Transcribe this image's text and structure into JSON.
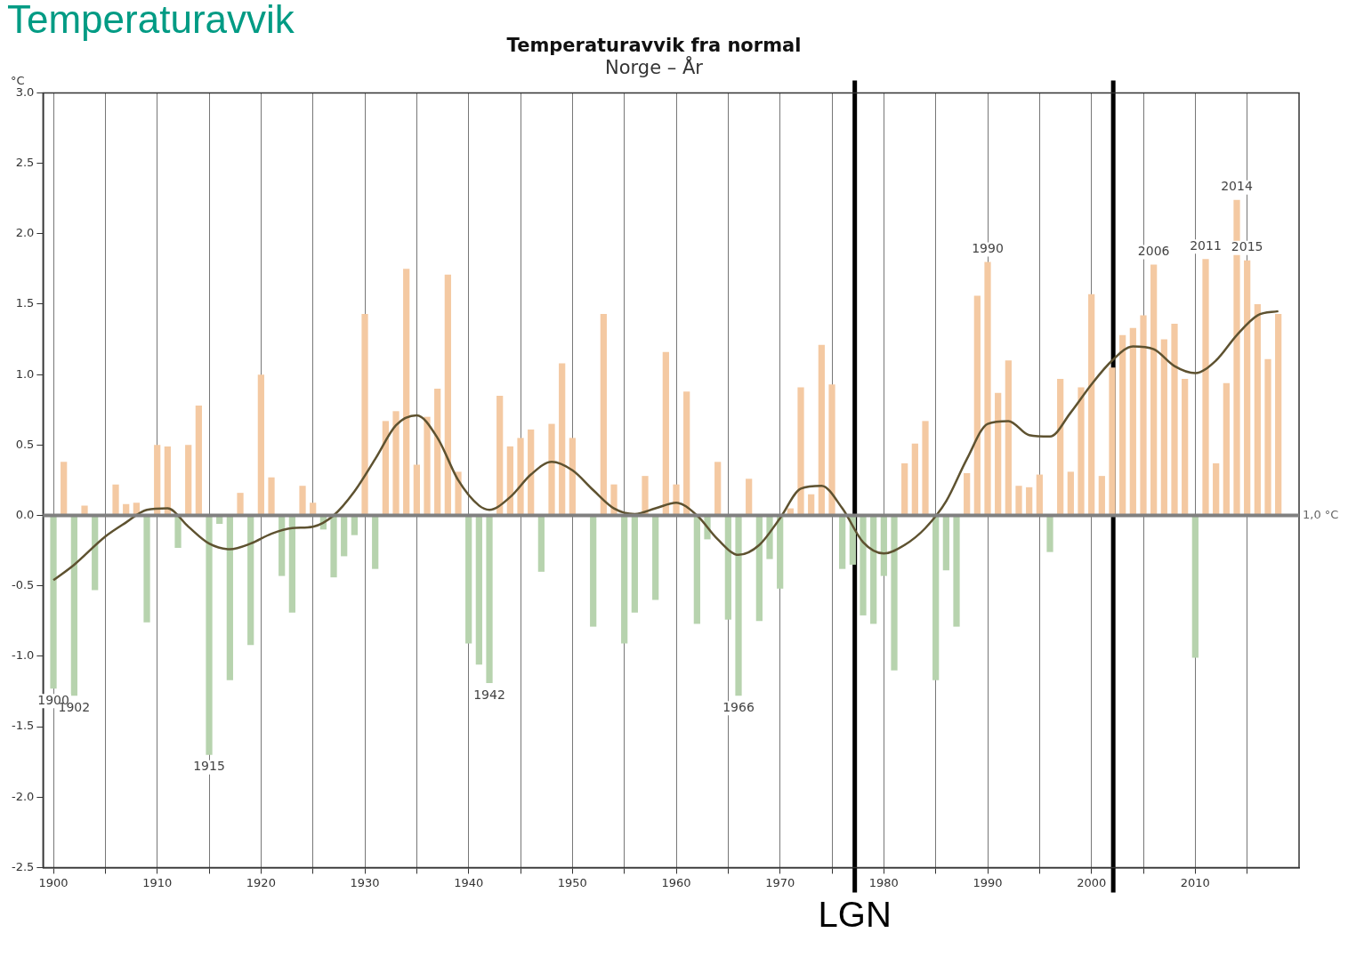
{
  "chart_data": {
    "type": "bar",
    "title": "Temperaturavvik fra normal",
    "subtitle": "Norge – År",
    "ylabel": "°C",
    "xlim": [
      1899,
      2020
    ],
    "xticks": [
      1900,
      {
        "value": 1905,
        "label": null
      },
      1910,
      {
        "value": 1915,
        "label": null
      },
      1920,
      {
        "value": 1925,
        "label": null
      },
      1930,
      {
        "value": 1935,
        "label": null
      },
      1940,
      {
        "value": 1945,
        "label": null
      },
      1950,
      {
        "value": 1955,
        "label": null
      },
      1960,
      {
        "value": 1965,
        "label": null
      },
      1970,
      {
        "value": 1975,
        "label": null
      },
      1980,
      {
        "value": 1985,
        "label": null
      },
      1990,
      {
        "value": 1995,
        "label": null
      },
      2000,
      {
        "value": 2005,
        "label": null
      },
      2010,
      {
        "value": 2015,
        "label": null
      }
    ],
    "ylim": [
      -2.5,
      3
    ],
    "yticks": [
      {
        "value": -2.5,
        "label": "-2.5"
      },
      {
        "value": -2,
        "label": "-2.0"
      },
      {
        "value": -1.5,
        "label": "-1.5"
      },
      {
        "value": -1,
        "label": "-1.0"
      },
      {
        "value": -0.5,
        "label": "-0.5"
      },
      {
        "value": 0,
        "label": "0.0"
      },
      {
        "value": 0.5,
        "label": "0.5"
      },
      {
        "value": 1,
        "label": "1.0"
      },
      {
        "value": 1.5,
        "label": "1.5"
      },
      {
        "value": 2,
        "label": "2.0"
      },
      {
        "value": 2.5,
        "label": "2.5"
      },
      {
        "value": 3,
        "label": "3.0"
      }
    ],
    "grid": "x",
    "legend": false,
    "series": [
      {
        "x": [
          1900,
          1901,
          1902,
          1903,
          1904,
          1905,
          1906,
          1907,
          1908,
          1909,
          1910,
          1911,
          1912,
          1913,
          1914,
          1915,
          1916,
          1917,
          1918,
          1919,
          1920,
          1921,
          1922,
          1923,
          1924,
          1925,
          1926,
          1927,
          1928,
          1929,
          1930,
          1931,
          1932,
          1933,
          1934,
          1935,
          1936,
          1937,
          1938,
          1939,
          1940,
          1941,
          1942,
          1943,
          1944,
          1945,
          1946,
          1947,
          1948,
          1949,
          1950,
          1951,
          1952,
          1953,
          1954,
          1955,
          1956,
          1957,
          1958,
          1959,
          1960,
          1961,
          1962,
          1963,
          1964,
          1965,
          1966,
          1967,
          1968,
          1969,
          1970,
          1971,
          1972,
          1973,
          1974,
          1975,
          1976,
          1977,
          1978,
          1979,
          1980,
          1981,
          1982,
          1983,
          1984,
          1985,
          1986,
          1987,
          1988,
          1989,
          1990,
          1991,
          1992,
          1993,
          1994,
          1995,
          1996,
          1997,
          1998,
          1999,
          2000,
          2001,
          2002,
          2003,
          2004,
          2005,
          2006,
          2007,
          2008,
          2009,
          2010,
          2011,
          2012,
          2013,
          2014,
          2015,
          2016,
          2017,
          2018
        ],
        "values": [
          -1.23,
          0.38,
          -1.28,
          0.07,
          -0.53,
          0,
          0.22,
          0.08,
          0.09,
          -0.76,
          0.5,
          0.49,
          -0.23,
          0.5,
          0.78,
          -1.7,
          -0.06,
          -1.17,
          0.16,
          -0.92,
          1.0,
          0.27,
          -0.43,
          -0.69,
          0.21,
          0.09,
          -0.1,
          -0.44,
          -0.29,
          -0.14,
          1.43,
          -0.38,
          0.67,
          0.74,
          1.75,
          0.36,
          0.7,
          0.9,
          1.71,
          0.31,
          -0.91,
          -1.06,
          -1.19,
          0.85,
          0.49,
          0.55,
          0.61,
          -0.4,
          0.65,
          1.08,
          0.55,
          0,
          -0.79,
          1.43,
          0.22,
          -0.91,
          -0.69,
          0.28,
          -0.6,
          1.16,
          0.22,
          0.88,
          -0.77,
          -0.17,
          0.38,
          -0.74,
          -1.28,
          0.26,
          -0.75,
          -0.31,
          -0.52,
          0.05,
          0.91,
          0.15,
          1.21,
          0.93,
          -0.38,
          -0.35,
          -0.71,
          -0.77,
          -0.43,
          -1.1,
          0.37,
          0.51,
          0.67,
          -1.17,
          -0.39,
          -0.79,
          0.3,
          1.56,
          1.8,
          0.87,
          1.1,
          0.21,
          0.2,
          0.29,
          -0.26,
          0.97,
          0.31,
          0.91,
          1.57,
          0.28,
          1.05,
          1.28,
          1.33,
          1.42,
          1.78,
          1.25,
          1.36,
          0.97,
          -1.01,
          1.82,
          0.37,
          0.94,
          2.24,
          1.81,
          1.5,
          1.11,
          1.43
        ],
        "colors": [
          "#b7d3ae",
          "#f4c9a2",
          "#b7d3ae",
          "#f4c9a2",
          "#b7d3ae",
          "#f4c9a2",
          "#f4c9a2",
          "#f4c9a2",
          "#f4c9a2",
          "#b7d3ae",
          "#f4c9a2",
          "#f4c9a2",
          "#b7d3ae",
          "#f4c9a2",
          "#f4c9a2",
          "#b7d3ae",
          "#b7d3ae",
          "#b7d3ae",
          "#f4c9a2",
          "#b7d3ae",
          "#f4c9a2",
          "#f4c9a2",
          "#b7d3ae",
          "#b7d3ae",
          "#f4c9a2",
          "#f4c9a2",
          "#b7d3ae",
          "#b7d3ae",
          "#b7d3ae",
          "#b7d3ae",
          "#f4c9a2",
          "#b7d3ae",
          "#f4c9a2",
          "#f4c9a2",
          "#f4c9a2",
          "#f4c9a2",
          "#f4c9a2",
          "#f4c9a2",
          "#f4c9a2",
          "#f4c9a2",
          "#b7d3ae",
          "#b7d3ae",
          "#b7d3ae",
          "#f4c9a2",
          "#f4c9a2",
          "#f4c9a2",
          "#f4c9a2",
          "#b7d3ae",
          "#f4c9a2",
          "#f4c9a2",
          "#f4c9a2",
          "#f4c9a2",
          "#b7d3ae",
          "#f4c9a2",
          "#f4c9a2",
          "#b7d3ae",
          "#b7d3ae",
          "#f4c9a2",
          "#b7d3ae",
          "#f4c9a2",
          "#f4c9a2",
          "#f4c9a2",
          "#b7d3ae",
          "#b7d3ae",
          "#f4c9a2",
          "#b7d3ae",
          "#b7d3ae",
          "#f4c9a2",
          "#b7d3ae",
          "#b7d3ae",
          "#b7d3ae",
          "#f4c9a2",
          "#f4c9a2",
          "#f4c9a2",
          "#f4c9a2",
          "#f4c9a2",
          "#b7d3ae",
          "#b7d3ae",
          "#b7d3ae",
          "#b7d3ae",
          "#b7d3ae",
          "#b7d3ae",
          "#f4c9a2",
          "#f4c9a2",
          "#f4c9a2",
          "#b7d3ae",
          "#b7d3ae",
          "#b7d3ae",
          "#f4c9a2",
          "#f4c9a2",
          "#f4c9a2",
          "#f4c9a2",
          "#f4c9a2",
          "#f4c9a2",
          "#f4c9a2",
          "#f4c9a2",
          "#b7d3ae",
          "#f4c9a2",
          "#f4c9a2",
          "#f4c9a2",
          "#f4c9a2",
          "#f4c9a2",
          "#f4c9a2",
          "#f4c9a2",
          "#f4c9a2",
          "#f4c9a2",
          "#f4c9a2",
          "#f4c9a2",
          "#f4c9a2",
          "#f4c9a2",
          "#b7d3ae",
          "#f4c9a2",
          "#f4c9a2",
          "#f4c9a2",
          "#f4c9a2",
          "#f4c9a2",
          "#f4c9a2",
          "#f4c9a2",
          "#f4c9a2"
        ]
      },
      {
        "type": "line",
        "color": "#5e5230",
        "x": [
          1900,
          1902,
          1905,
          1907,
          1909,
          1911,
          1913,
          1915,
          1917,
          1919,
          1921,
          1923,
          1925,
          1927,
          1929,
          1931,
          1933,
          1935,
          1937,
          1939,
          1941,
          1942,
          1944,
          1946,
          1948,
          1950,
          1952,
          1954,
          1956,
          1958,
          1960,
          1962,
          1964,
          1966,
          1968,
          1970,
          1972,
          1974,
          1976,
          1978,
          1980,
          1982,
          1984,
          1986,
          1988,
          1990,
          1992,
          1994,
          1996,
          1998,
          2000,
          2002,
          2004,
          2006,
          2008,
          2010,
          2012,
          2014,
          2016,
          2018
        ],
        "values": [
          -0.46,
          -0.35,
          -0.15,
          -0.05,
          0.04,
          0.05,
          -0.08,
          -0.2,
          -0.24,
          -0.2,
          -0.13,
          -0.09,
          -0.08,
          0.0,
          0.17,
          0.4,
          0.64,
          0.71,
          0.55,
          0.25,
          0.07,
          0.04,
          0.13,
          0.29,
          0.38,
          0.32,
          0.18,
          0.05,
          0.01,
          0.05,
          0.09,
          0.0,
          -0.17,
          -0.28,
          -0.21,
          -0.02,
          0.19,
          0.21,
          0.05,
          -0.19,
          -0.27,
          -0.21,
          -0.09,
          0.1,
          0.4,
          0.65,
          0.67,
          0.57,
          0.56,
          0.73,
          0.93,
          1.1,
          1.2,
          1.18,
          1.06,
          1.01,
          1.1,
          1.28,
          1.42,
          1.45
        ]
      }
    ],
    "ref_lines": [
      {
        "axis": "y",
        "value": 0,
        "label": "1,0 °C",
        "color": "#808080"
      },
      {
        "axis": "x",
        "value": 1977.2,
        "label": "LGN",
        "color": "#000000"
      },
      {
        "axis": "x",
        "value": 2002.1,
        "color": "#000000"
      }
    ],
    "annotations": [
      "Temperaturavvik",
      {
        "text": "1900",
        "x": 1900,
        "y": -1.23
      },
      {
        "text": "1902",
        "x": 1902,
        "y": -1.28
      },
      {
        "text": "1915",
        "x": 1915,
        "y": -1.7
      },
      {
        "text": "1942",
        "x": 1942,
        "y": -1.19
      },
      {
        "text": "1966",
        "x": 1966,
        "y": -1.28
      },
      {
        "text": "1990",
        "x": 1990,
        "y": 1.8
      },
      {
        "text": "2006",
        "x": 2006,
        "y": 1.78
      },
      {
        "text": "2011",
        "x": 2011,
        "y": 1.82
      },
      {
        "text": "2014",
        "x": 2014,
        "y": 2.24
      },
      {
        "text": "2015",
        "x": 2015,
        "y": 1.81
      }
    ]
  }
}
